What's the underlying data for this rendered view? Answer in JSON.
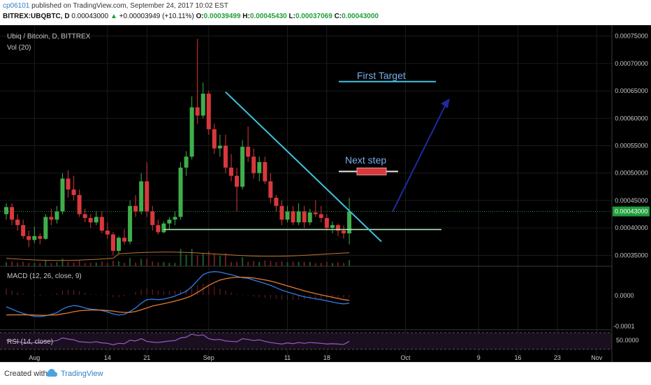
{
  "header": {
    "user": "cp06101",
    "published": "published on TradingView.com, September 24, 2017 10:02 EST",
    "symbol": "BITREX:UBQBTC, D",
    "price": "0.00043000",
    "change": "+0.00003949 (+10.11%)",
    "o_label": "O:",
    "o_value": "0.00039499",
    "h_label": "H:",
    "h_value": "0.00045430",
    "l_label": "L:",
    "l_value": "0.00037069",
    "c_label": "C:",
    "c_value": "0.00043000"
  },
  "legend": {
    "title": "Ubiq / Bitcoin, D, BITTREX",
    "volume": "Vol (20)"
  },
  "annotations": {
    "first_target": "First Target",
    "next_step": "Next step"
  },
  "current_price_label": "0.00043000",
  "macd": {
    "label": "MACD (12, 26, close, 9)",
    "ticks": [
      "0.0000",
      "-0.0001"
    ]
  },
  "rsi": {
    "label": "RSI (14, close)",
    "value": "50.0000"
  },
  "footer": {
    "created_with": "Created with",
    "brand": "TradingView"
  },
  "colors": {
    "background": "#000000",
    "up": "#3fae4b",
    "down": "#d9383c",
    "trendline": "#3ec6df",
    "support": "#b8f0c0",
    "target_line": "#3ec6df",
    "arrow": "#1e2a9a",
    "macd": "#2f7ee8",
    "signal": "#e67a2e",
    "rsi": "#9b59c6",
    "text": "#c8c8c8",
    "annotation_text": "#78aee8",
    "price_tag": "#1f9e3b"
  },
  "chart_data": {
    "type": "candlestick",
    "title": "Ubiq / Bitcoin, D, BITTREX",
    "x_tick_labels": [
      "Aug",
      "14",
      "21",
      "Sep",
      "11",
      "18",
      "Oct",
      "9",
      "16",
      "23",
      "Nov"
    ],
    "y_axis": {
      "range": [
        0.00033,
        0.00077
      ],
      "ticks": [
        "0.00075000",
        "0.00070000",
        "0.00065000",
        "0.00060000",
        "0.00055000",
        "0.00050000",
        "0.00045000",
        "0.00040000",
        "0.00035000"
      ]
    },
    "start_date": "2017-07-27",
    "ohlc": [
      [
        0.000425,
        0.000445,
        0.000415,
        0.000438
      ],
      [
        0.000438,
        0.000445,
        0.000405,
        0.000415
      ],
      [
        0.000415,
        0.000425,
        0.000395,
        0.000405
      ],
      [
        0.000405,
        0.000415,
        0.00038,
        0.000385
      ],
      [
        0.000385,
        0.000395,
        0.000365,
        0.000378
      ],
      [
        0.000378,
        0.000402,
        0.000372,
        0.000385
      ],
      [
        0.000385,
        0.00039,
        0.00037,
        0.00038
      ],
      [
        0.00038,
        0.000425,
        0.000378,
        0.00042
      ],
      [
        0.00042,
        0.000435,
        0.000405,
        0.000415
      ],
      [
        0.000415,
        0.00044,
        0.000408,
        0.00043
      ],
      [
        0.00043,
        0.0005,
        0.000425,
        0.00049
      ],
      [
        0.00049,
        0.000505,
        0.000455,
        0.00047
      ],
      [
        0.00047,
        0.000495,
        0.00045,
        0.00046
      ],
      [
        0.00046,
        0.00047,
        0.00042,
        0.000425
      ],
      [
        0.000425,
        0.000435,
        0.00041,
        0.000418
      ],
      [
        0.000418,
        0.000425,
        0.0004,
        0.00041
      ],
      [
        0.00041,
        0.00043,
        0.000405,
        0.00042
      ],
      [
        0.00042,
        0.00043,
        0.00039,
        0.000395
      ],
      [
        0.000395,
        0.00041,
        0.00038,
        0.000388
      ],
      [
        0.000388,
        0.000392,
        0.00035,
        0.000358
      ],
      [
        0.000358,
        0.000385,
        0.000352,
        0.000382
      ],
      [
        0.000382,
        0.000398,
        0.00037,
        0.000375
      ],
      [
        0.000375,
        0.00045,
        0.00037,
        0.00044
      ],
      [
        0.00044,
        0.00046,
        0.00042,
        0.00043
      ],
      [
        0.00043,
        0.0005,
        0.000425,
        0.000485
      ],
      [
        0.000485,
        0.00052,
        0.00042,
        0.00043
      ],
      [
        0.00043,
        0.00044,
        0.000395,
        0.000405
      ],
      [
        0.000405,
        0.000415,
        0.000388,
        0.000392
      ],
      [
        0.000392,
        0.000412,
        0.00039,
        0.000408
      ],
      [
        0.000408,
        0.00042,
        0.000398,
        0.000415
      ],
      [
        0.000415,
        0.00043,
        0.000405,
        0.00042
      ],
      [
        0.00042,
        0.00052,
        0.000415,
        0.00051
      ],
      [
        0.00051,
        0.00054,
        0.000495,
        0.00053
      ],
      [
        0.00053,
        0.00064,
        0.000525,
        0.00062
      ],
      [
        0.00062,
        0.000745,
        0.00059,
        0.000605
      ],
      [
        0.000605,
        0.000665,
        0.0006,
        0.000645
      ],
      [
        0.000645,
        0.00065,
        0.00057,
        0.00058
      ],
      [
        0.00058,
        0.00059,
        0.000535,
        0.000545
      ],
      [
        0.000545,
        0.00057,
        0.00053,
        0.00055
      ],
      [
        0.00055,
        0.00057,
        0.0005,
        0.00051
      ],
      [
        0.00051,
        0.000535,
        0.000485,
        0.000495
      ],
      [
        0.000495,
        0.00051,
        0.00043,
        0.000475
      ],
      [
        0.000475,
        0.00056,
        0.00047,
        0.000548
      ],
      [
        0.000548,
        0.000585,
        0.00052,
        0.00053
      ],
      [
        0.00053,
        0.000545,
        0.00049,
        0.0005
      ],
      [
        0.0005,
        0.00053,
        0.000485,
        0.00052
      ],
      [
        0.00052,
        0.00053,
        0.00048,
        0.000485
      ],
      [
        0.000485,
        0.0005,
        0.000445,
        0.000455
      ],
      [
        0.000455,
        0.00046,
        0.00043,
        0.00044
      ],
      [
        0.00044,
        0.00045,
        0.000405,
        0.000415
      ],
      [
        0.000415,
        0.00044,
        0.00041,
        0.00043
      ],
      [
        0.00043,
        0.00044,
        0.000405,
        0.00041
      ],
      [
        0.00041,
        0.000445,
        0.000405,
        0.00043
      ],
      [
        0.00043,
        0.00044,
        0.0004,
        0.00041
      ],
      [
        0.00041,
        0.000435,
        0.000405,
        0.000428
      ],
      [
        0.000428,
        0.00045,
        0.00042,
        0.000425
      ],
      [
        0.000425,
        0.00044,
        0.00041,
        0.000418
      ],
      [
        0.000418,
        0.000425,
        0.000395,
        0.0004
      ],
      [
        0.0004,
        0.000412,
        0.00039,
        0.000405
      ],
      [
        0.000405,
        0.000408,
        0.000385,
        0.000395
      ],
      [
        0.000395,
        0.000405,
        0.00038,
        0.00039
      ],
      [
        0.00039,
        0.000455,
        0.00037,
        0.00043
      ]
    ],
    "volume_baseline_level": 0.000352,
    "support_level": 0.000397,
    "next_step_level": 0.000503,
    "first_target_level": 0.000667,
    "macd_series": {
      "macd": [
        -0.5,
        -0.6,
        -0.7,
        -0.78,
        -0.85,
        -0.9,
        -0.92,
        -0.88,
        -0.82,
        -0.75,
        -0.6,
        -0.5,
        -0.45,
        -0.48,
        -0.55,
        -0.6,
        -0.62,
        -0.66,
        -0.72,
        -0.8,
        -0.85,
        -0.82,
        -0.7,
        -0.55,
        -0.35,
        -0.2,
        -0.18,
        -0.2,
        -0.18,
        -0.12,
        -0.05,
        0.05,
        0.15,
        0.35,
        0.6,
        0.85,
        0.95,
        0.98,
        0.96,
        0.9,
        0.85,
        0.78,
        0.72,
        0.7,
        0.62,
        0.55,
        0.48,
        0.4,
        0.3,
        0.2,
        0.12,
        0.05,
        -0.02,
        -0.08,
        -0.12,
        -0.17,
        -0.2,
        -0.25,
        -0.3,
        -0.35,
        -0.38,
        -0.35
      ],
      "signal": [
        -0.85,
        -0.84,
        -0.84,
        -0.84,
        -0.84,
        -0.85,
        -0.86,
        -0.86,
        -0.85,
        -0.84,
        -0.8,
        -0.76,
        -0.71,
        -0.67,
        -0.65,
        -0.64,
        -0.64,
        -0.64,
        -0.66,
        -0.68,
        -0.72,
        -0.74,
        -0.74,
        -0.7,
        -0.63,
        -0.55,
        -0.47,
        -0.42,
        -0.37,
        -0.32,
        -0.26,
        -0.2,
        -0.13,
        -0.03,
        0.1,
        0.25,
        0.4,
        0.52,
        0.62,
        0.68,
        0.72,
        0.74,
        0.74,
        0.73,
        0.71,
        0.67,
        0.63,
        0.58,
        0.52,
        0.45,
        0.38,
        0.31,
        0.24,
        0.17,
        0.11,
        0.05,
        0.0,
        -0.05,
        -0.1,
        -0.15,
        -0.2,
        -0.23
      ]
    },
    "rsi_series": [
      52,
      50,
      48,
      46,
      44,
      46,
      45,
      50,
      49,
      51,
      58,
      55,
      53,
      48,
      47,
      46,
      48,
      45,
      44,
      40,
      44,
      43,
      52,
      50,
      56,
      49,
      47,
      46,
      48,
      50,
      51,
      58,
      60,
      68,
      64,
      66,
      56,
      53,
      54,
      50,
      49,
      48,
      56,
      54,
      51,
      53,
      49,
      46,
      44,
      42,
      45,
      43,
      46,
      44,
      46,
      45,
      44,
      42,
      43,
      42,
      41,
      49
    ]
  }
}
